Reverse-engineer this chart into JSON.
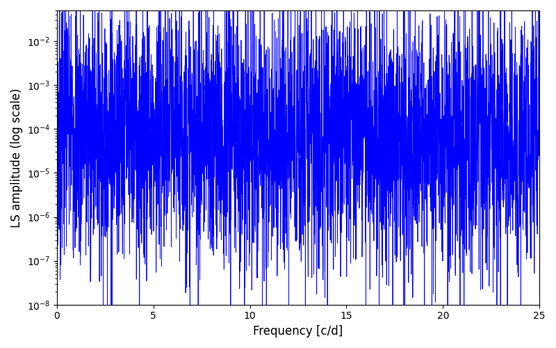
{
  "xlabel": "Frequency [c/d]",
  "ylabel": "LS amplitude (log scale)",
  "line_color": "#0000FF",
  "xlim": [
    0,
    25
  ],
  "ylim_low": 1e-08,
  "ylim_high": 0.05,
  "figsize": [
    8.0,
    5.0
  ],
  "dpi": 100,
  "n_points": 4000,
  "freq_max": 25.0,
  "seed": 7
}
